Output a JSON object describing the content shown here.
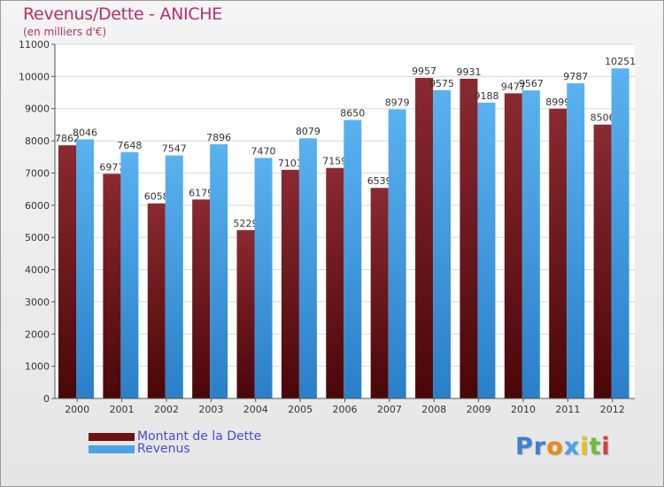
{
  "header": {
    "title": "Revenus/Dette - ANICHE",
    "subtitle": "(en milliers d'€)"
  },
  "colors": {
    "dette": "#7a1f25",
    "revenus": "#4aa3e6",
    "title": "#b5306a",
    "legend_text": "#4a4ad6"
  },
  "chart_data": {
    "type": "bar",
    "title": "Revenus/Dette - ANICHE",
    "subtitle": "(en milliers d'€)",
    "categories": [
      "2000",
      "2001",
      "2002",
      "2003",
      "2004",
      "2005",
      "2006",
      "2007",
      "2008",
      "2009",
      "2010",
      "2011",
      "2012"
    ],
    "series": [
      {
        "name": "Montant de la Dette",
        "values": [
          7862,
          6977,
          6058,
          6179,
          5229,
          7101,
          7159,
          6539,
          9957,
          9931,
          9477,
          8999,
          8506
        ]
      },
      {
        "name": "Revenus",
        "values": [
          8046,
          7648,
          7547,
          7896,
          7470,
          8079,
          8650,
          8979,
          9575,
          9188,
          9567,
          9787,
          10251
        ]
      }
    ],
    "data_labels": [
      [
        "7862",
        "6977",
        "6058",
        "6179",
        "5229",
        "7101",
        "7159",
        "6539",
        "9957",
        "9931",
        "9477",
        "8999",
        "8506"
      ],
      [
        "8046",
        "7648",
        "7547",
        "7896",
        "7470",
        "8079",
        "8650",
        "8979",
        "9575",
        "9188",
        "9567",
        "9787",
        "10251"
      ]
    ],
    "ylim": [
      0,
      11000
    ],
    "yticks": [
      0,
      1000,
      2000,
      3000,
      4000,
      5000,
      6000,
      7000,
      8000,
      9000,
      10000,
      11000
    ],
    "grid": true,
    "legend_position": "bottom-left"
  },
  "legend": {
    "items": [
      {
        "label": "Montant de la Dette",
        "color": "#6b1414"
      },
      {
        "label": "Revenus",
        "color": "#4aa3e6"
      }
    ]
  },
  "logo": {
    "letters": [
      {
        "ch": "P",
        "color": "#3f7fd1"
      },
      {
        "ch": "r",
        "color": "#3f7fd1"
      },
      {
        "ch": "o",
        "color": "#e88a1a"
      },
      {
        "ch": "x",
        "color": "#4aa3e6"
      },
      {
        "ch": "i",
        "color": "#e8c21a"
      },
      {
        "ch": "t",
        "color": "#6bbf3a"
      },
      {
        "ch": "i",
        "color": "#d83c3c"
      }
    ]
  }
}
